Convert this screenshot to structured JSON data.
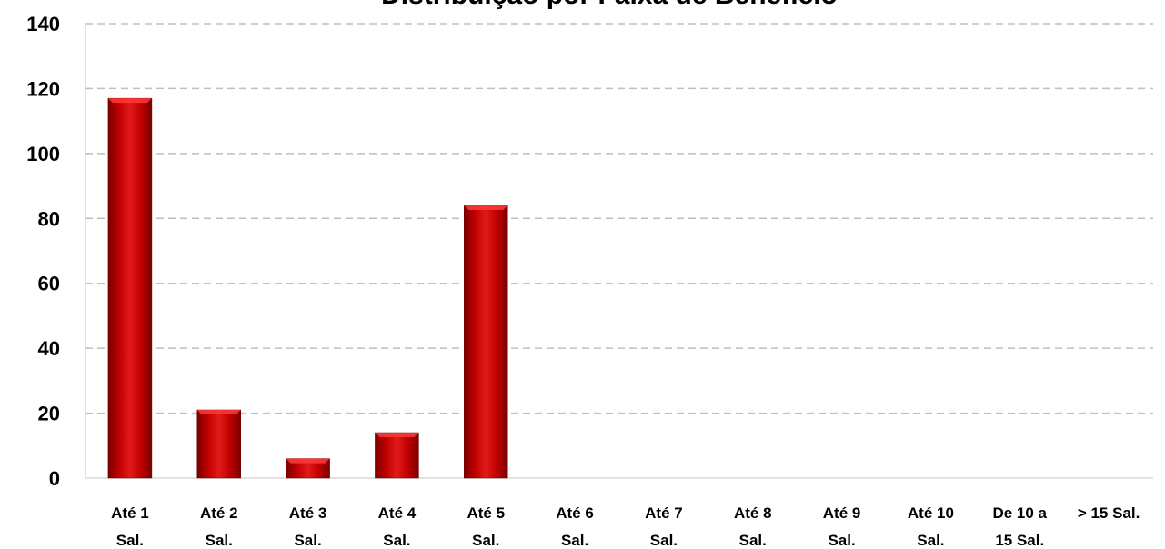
{
  "chart_data": {
    "type": "bar",
    "title": "Distribuição por Faixa de Benefício",
    "xlabel": "",
    "ylabel": "",
    "categories": [
      [
        "Até 1",
        "Sal."
      ],
      [
        "Até 2",
        "Sal."
      ],
      [
        "Até 3",
        "Sal."
      ],
      [
        "Até 4",
        "Sal."
      ],
      [
        "Até 5",
        "Sal."
      ],
      [
        "Até 6",
        "Sal."
      ],
      [
        "Até 7",
        "Sal."
      ],
      [
        "Até 8",
        "Sal."
      ],
      [
        "Até 9",
        "Sal."
      ],
      [
        "Até 10",
        "Sal."
      ],
      [
        "De 10 a",
        "15 Sal."
      ],
      [
        "> 15 Sal.",
        ""
      ]
    ],
    "values": [
      117,
      21,
      6,
      14,
      84,
      0,
      0,
      0,
      0,
      0,
      0,
      0
    ],
    "ylim": [
      0,
      140
    ],
    "yticks": [
      0,
      20,
      40,
      60,
      80,
      100,
      120,
      140
    ],
    "grid": true,
    "legend": "none",
    "colors": {
      "bar": "#c00000",
      "bar_light": "#e02020",
      "bar_dark": "#7a0000",
      "grid": "#bfbfbf",
      "axis": "#d9d9d9"
    }
  }
}
